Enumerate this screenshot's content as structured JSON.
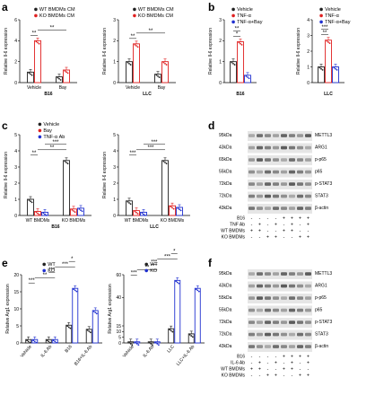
{
  "colors": {
    "wt": "#222222",
    "ko": "#e02020",
    "tnf": "#e02020",
    "bay": "#e02020",
    "tnfbay": "#2030d0",
    "ab": "#2030d0",
    "gel_bg": "#e6e6e6",
    "band": "#3a3a3a"
  },
  "panel_labels": [
    "a",
    "b",
    "c",
    "d",
    "e",
    "f"
  ],
  "chart_data": [
    {
      "id": "a1",
      "type": "bar",
      "ylabel": "Relative Il-6 expression",
      "ylim": [
        0,
        6
      ],
      "yticks": [
        0,
        2,
        4,
        6
      ],
      "groups": [
        "Vehicle",
        "Bay"
      ],
      "group_labels": [
        "Vehicle",
        "Bay"
      ],
      "bottom_label": "B16",
      "legend": [
        "WT BMDMs CM",
        "KO BMDMs CM"
      ],
      "series": [
        {
          "name": "WT BMDMs CM",
          "color": "wt",
          "values": [
            1.0,
            0.55
          ]
        },
        {
          "name": "KO BMDMs CM",
          "color": "ko",
          "values": [
            4.0,
            1.2
          ]
        }
      ],
      "sig": [
        "**",
        "**"
      ]
    },
    {
      "id": "a2",
      "type": "bar",
      "ylabel": "Relative Il-6 expression",
      "ylim": [
        0,
        3
      ],
      "yticks": [
        0,
        1,
        2,
        3
      ],
      "groups": [
        "Vehicle",
        "Bay"
      ],
      "group_labels": [
        "Vehicle",
        "Bay"
      ],
      "bottom_label": "LLC",
      "legend": [
        "WT BMDMs CM",
        "KO BMDMs CM"
      ],
      "series": [
        {
          "name": "WT BMDMs CM",
          "color": "wt",
          "values": [
            1.0,
            0.4
          ]
        },
        {
          "name": "KO BMDMs CM",
          "color": "ko",
          "values": [
            1.85,
            1.0
          ]
        }
      ],
      "sig": [
        "**",
        "**"
      ]
    },
    {
      "id": "b1",
      "type": "bar",
      "ylabel": "Relative Il-6 expression",
      "ylim": [
        0,
        3
      ],
      "yticks": [
        0,
        1,
        2,
        3
      ],
      "groups": [
        "B16"
      ],
      "group_labels": [],
      "bottom_label": "B16",
      "legend": [
        "Vehicle",
        "TNF-α",
        "TNF-α+Bay"
      ],
      "series": [
        {
          "name": "Vehicle",
          "color": "wt",
          "values": [
            1.0
          ]
        },
        {
          "name": "TNF-α",
          "color": "tnf",
          "values": [
            1.95
          ]
        },
        {
          "name": "TNF-α+Bay",
          "color": "tnfbay",
          "values": [
            0.35
          ]
        }
      ],
      "sig": [
        "*",
        "**"
      ]
    },
    {
      "id": "b2",
      "type": "bar",
      "ylabel": "Relative Il-6 expression",
      "ylim": [
        0,
        4
      ],
      "yticks": [
        0,
        1,
        2,
        3,
        4
      ],
      "groups": [
        "LLC"
      ],
      "group_labels": [],
      "bottom_label": "LLC",
      "legend": [
        "Vehicle",
        "TNF-α",
        "TNF-α+Bay"
      ],
      "series": [
        {
          "name": "Vehicle",
          "color": "wt",
          "values": [
            1.0
          ]
        },
        {
          "name": "TNF-α",
          "color": "tnf",
          "values": [
            2.7
          ]
        },
        {
          "name": "TNF-α+Bay",
          "color": "tnfbay",
          "values": [
            1.0
          ]
        }
      ],
      "sig": [
        "**",
        "***"
      ]
    },
    {
      "id": "c1",
      "type": "bar",
      "ylabel": "Relative Il-6 expression",
      "ylim": [
        0,
        5
      ],
      "yticks": [
        0,
        1,
        2,
        3,
        4,
        5
      ],
      "groups": [
        "WT BMDMs",
        "KO BMDMs"
      ],
      "group_labels": [
        "WT BMDMs",
        "KO BMDMs"
      ],
      "bottom_label": "B16",
      "legend": [
        "Vehicle",
        "Bay",
        "TNF-α Ab"
      ],
      "series": [
        {
          "name": "Vehicle",
          "color": "wt",
          "values": [
            1.0,
            3.4
          ]
        },
        {
          "name": "Bay",
          "color": "bay",
          "values": [
            0.25,
            0.4
          ]
        },
        {
          "name": "TNF-α Ab",
          "color": "ab",
          "values": [
            0.2,
            0.45
          ]
        }
      ],
      "sig": [
        "**",
        "**",
        "***"
      ]
    },
    {
      "id": "c2",
      "type": "bar",
      "ylabel": "Relative Il-6 expression",
      "ylim": [
        0,
        5
      ],
      "yticks": [
        0,
        1,
        2,
        3,
        4,
        5
      ],
      "groups": [
        "WT BMDMs",
        "KO BMDMs"
      ],
      "group_labels": [
        "WT BMDMs",
        "KO BMDMs"
      ],
      "bottom_label": "LLC",
      "legend": [],
      "series": [
        {
          "name": "Vehicle",
          "color": "wt",
          "values": [
            0.9,
            3.4
          ]
        },
        {
          "name": "Bay",
          "color": "bay",
          "values": [
            0.3,
            0.6
          ]
        },
        {
          "name": "TNF-α Ab",
          "color": "ab",
          "values": [
            0.2,
            0.5
          ]
        }
      ],
      "sig": [
        "***",
        "***",
        "***"
      ]
    },
    {
      "id": "e1",
      "type": "bar",
      "ylabel": "Relative Arg1 expression",
      "ylim": [
        0,
        20
      ],
      "yticks": [
        0,
        5,
        10,
        15,
        20
      ],
      "categories": [
        "Vehicle",
        "IL-6 Ab",
        "B16",
        "B16+IL-6 Ab"
      ],
      "legend": [
        "WT",
        "KO"
      ],
      "series": [
        {
          "name": "WT",
          "color": "wt",
          "values": [
            1.0,
            1.0,
            5.2,
            4.0
          ]
        },
        {
          "name": "KO",
          "color": "ab",
          "values": [
            1.0,
            1.0,
            16.0,
            9.5
          ]
        }
      ],
      "sig": [
        "***",
        "**",
        "***",
        "***",
        "*"
      ]
    },
    {
      "id": "e2",
      "type": "bar",
      "ylabel": "Relative Arg1 expression",
      "ylim": [
        0,
        60
      ],
      "yticks": [
        0,
        5,
        10,
        15,
        40,
        60
      ],
      "categories": [
        "Vehicle",
        "IL-6 Ab",
        "LLC",
        "LLC+IL-6 Ab"
      ],
      "legend": [
        "WT",
        "KO"
      ],
      "series": [
        {
          "name": "WT",
          "color": "wt",
          "values": [
            1.0,
            1.0,
            12.5,
            8.0
          ]
        },
        {
          "name": "KO",
          "color": "ab",
          "values": [
            1.0,
            1.0,
            55.0,
            48.0
          ]
        }
      ],
      "sig": [
        "***",
        "**",
        "***",
        "***",
        "*"
      ]
    }
  ],
  "blot_d": {
    "rows": [
      {
        "kda": "95kDa",
        "name": "METTL3"
      },
      {
        "kda": "43kDa",
        "name": "ARG1"
      },
      {
        "kda": "65kDa",
        "name": "p-p65"
      },
      {
        "kda": "55kDa",
        "name": "p65"
      },
      {
        "kda": "72kDa",
        "name": "p-STAT3"
      },
      {
        "kda": "72kDa",
        "name": "STAT3"
      },
      {
        "kda": "43kDa",
        "name": "β-actin"
      }
    ],
    "conditions": [
      {
        "label": "B16",
        "marks": [
          "-",
          "-",
          "-",
          "-",
          "+",
          "+",
          "+",
          "+"
        ]
      },
      {
        "label": "TNF Ab",
        "marks": [
          "-",
          "+",
          "-",
          "+",
          "-",
          "+",
          "-",
          "+"
        ]
      },
      {
        "label": "WT BMDMs",
        "marks": [
          "+",
          "+",
          "-",
          "-",
          "+",
          "+",
          "-",
          "-"
        ]
      },
      {
        "label": "KO BMDMs",
        "marks": [
          "-",
          "-",
          "+",
          "+",
          "-",
          "-",
          "+",
          "+"
        ]
      }
    ]
  },
  "blot_f": {
    "rows": [
      {
        "kda": "95kDa",
        "name": "METTL3"
      },
      {
        "kda": "43kDa",
        "name": "ARG1"
      },
      {
        "kda": "55kDa",
        "name": "p-p65"
      },
      {
        "kda": "55kDa",
        "name": "p65"
      },
      {
        "kda": "72kDa",
        "name": "p-STAT3"
      },
      {
        "kda": "72kDa",
        "name": "STAT3"
      },
      {
        "kda": "43kDa",
        "name": "β-actin"
      }
    ],
    "conditions": [
      {
        "label": "B16",
        "marks": [
          "-",
          "-",
          "-",
          "-",
          "+",
          "+",
          "+",
          "+"
        ]
      },
      {
        "label": "IL-6 Ab",
        "marks": [
          "-",
          "+",
          "-",
          "+",
          "-",
          "+",
          "-",
          "+"
        ]
      },
      {
        "label": "WT BMDMs",
        "marks": [
          "+",
          "+",
          "-",
          "-",
          "+",
          "+",
          "-",
          "-"
        ]
      },
      {
        "label": "KO BMDMs",
        "marks": [
          "-",
          "-",
          "+",
          "+",
          "-",
          "-",
          "+",
          "+"
        ]
      }
    ]
  }
}
